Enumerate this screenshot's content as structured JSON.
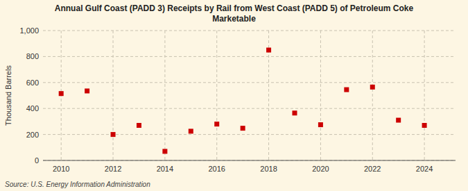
{
  "chart_data": {
    "type": "scatter",
    "title": "Annual Gulf Coast (PADD 3) Receipts by Rail from West Coast (PADD 5) of Petroleum Coke\nMarketable",
    "y_label": "Thousand Barrels",
    "annotations": [
      "Source: U.S. Energy Information Administration"
    ],
    "x": [
      2010,
      2011,
      2012,
      2013,
      2014,
      2015,
      2016,
      2017,
      2018,
      2019,
      2020,
      2021,
      2022,
      2023,
      2024
    ],
    "values": [
      515,
      535,
      200,
      270,
      70,
      225,
      280,
      248,
      850,
      365,
      275,
      545,
      565,
      310,
      270
    ],
    "color": "#cc0000",
    "marker": "square",
    "xlim": [
      2009.3,
      2025.2
    ],
    "xticks": [
      2010,
      2012,
      2014,
      2016,
      2018,
      2020,
      2022,
      2024
    ],
    "ylim": [
      0,
      1000
    ],
    "yticks": [
      0,
      200,
      400,
      600,
      800,
      {
        "value": 1000,
        "label": "1,000"
      }
    ],
    "grid": true
  }
}
